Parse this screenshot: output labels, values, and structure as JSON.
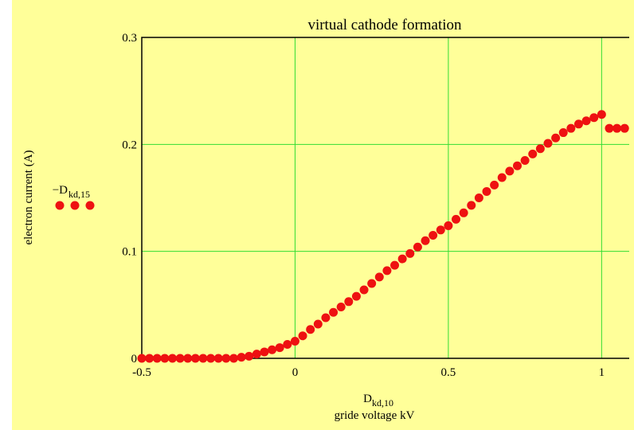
{
  "chart_data": {
    "type": "scatter",
    "title": "virtual cathode formation",
    "x_label": "D",
    "x_label_sub": "kd,10",
    "x_label_line2": "gride voltage kV",
    "y_label": "electron current (A)",
    "xlim": [
      -0.5,
      1.09
    ],
    "xticks": [
      -0.5,
      0,
      0.5,
      1
    ],
    "ylim": [
      0,
      0.3
    ],
    "yticks": [
      0,
      0.1,
      0.2,
      0.3
    ],
    "grid": true,
    "grid_color": "#33dd33",
    "background": "#ffff99",
    "x": [
      -0.5,
      -0.475,
      -0.45,
      -0.425,
      -0.4,
      -0.375,
      -0.35,
      -0.325,
      -0.3,
      -0.275,
      -0.25,
      -0.225,
      -0.2,
      -0.175,
      -0.15,
      -0.125,
      -0.1,
      -0.075,
      -0.05,
      -0.025,
      0,
      0.025,
      0.05,
      0.075,
      0.1,
      0.125,
      0.15,
      0.175,
      0.2,
      0.225,
      0.25,
      0.275,
      0.3,
      0.325,
      0.35,
      0.375,
      0.4,
      0.425,
      0.45,
      0.475,
      0.5,
      0.525,
      0.55,
      0.575,
      0.6,
      0.625,
      0.65,
      0.675,
      0.7,
      0.725,
      0.75,
      0.775,
      0.8,
      0.825,
      0.85,
      0.875,
      0.9,
      0.925,
      0.95,
      0.975,
      1.0,
      1.025,
      1.05,
      1.075
    ],
    "series": [
      {
        "name": "−D",
        "name_sub": "kd,15",
        "color": "#ee1111",
        "values": [
          0,
          0,
          0,
          0,
          0,
          0,
          0,
          0,
          0,
          0,
          0,
          0,
          0,
          0.001,
          0.002,
          0.004,
          0.006,
          0.008,
          0.01,
          0.013,
          0.016,
          0.021,
          0.027,
          0.032,
          0.038,
          0.043,
          0.048,
          0.053,
          0.058,
          0.064,
          0.07,
          0.076,
          0.082,
          0.087,
          0.093,
          0.098,
          0.104,
          0.11,
          0.115,
          0.12,
          0.124,
          0.13,
          0.136,
          0.143,
          0.15,
          0.156,
          0.162,
          0.169,
          0.175,
          0.18,
          0.185,
          0.191,
          0.196,
          0.201,
          0.206,
          0.211,
          0.215,
          0.219,
          0.222,
          0.225,
          0.228,
          0.215,
          0.215,
          0.215
        ]
      }
    ]
  }
}
